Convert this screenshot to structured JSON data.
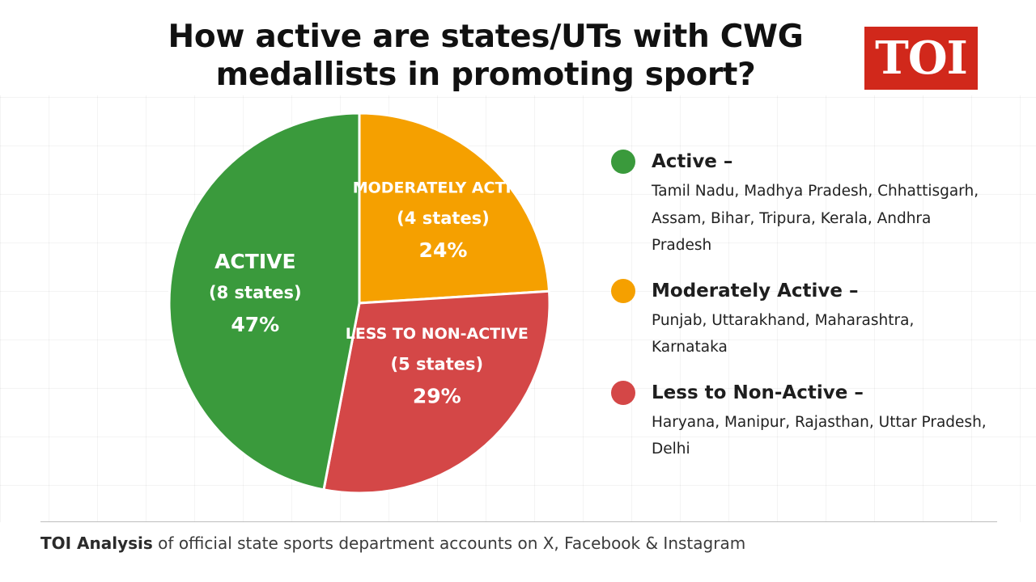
{
  "title": {
    "line1": "How active are states/UTs with CWG",
    "line2": "medallists in promoting sport?"
  },
  "logo": {
    "text": "TOI",
    "color": "#d1281b"
  },
  "chart_data": {
    "type": "pie",
    "title": "How active are states/UTs with CWG medallists in promoting sport?",
    "unit": "%",
    "slices": [
      {
        "name": "ACTIVE",
        "count_label": "(8 states)",
        "value": 47,
        "value_label": "47%",
        "color": "#3a9a3c"
      },
      {
        "name": "MODERATELY ACTIVE",
        "count_label": "(4 states)",
        "value": 24,
        "value_label": "24%",
        "color": "#f5a000"
      },
      {
        "name": "LESS TO NON-ACTIVE",
        "count_label": "(5 states)",
        "value": 29,
        "value_label": "29%",
        "color": "#d44747"
      }
    ],
    "legend_position": "right"
  },
  "legend": [
    {
      "heading": "Active –",
      "color": "#3a9a3c",
      "states": "Tamil Nadu, Madhya Pradesh, Chhattisgarh, Assam, Bihar, Tripura, Kerala, Andhra Pradesh"
    },
    {
      "heading": "Moderately Active –",
      "color": "#f5a000",
      "states": "Punjab, Uttarakhand, Maharashtra, Karnataka"
    },
    {
      "heading": "Less to Non-Active –",
      "color": "#d44747",
      "states": "Haryana, Manipur, Rajasthan, Uttar Pradesh, Delhi"
    }
  ],
  "footer": {
    "bold": "TOI Analysis",
    "rest": " of official state sports department accounts on X, Facebook & Instagram"
  }
}
